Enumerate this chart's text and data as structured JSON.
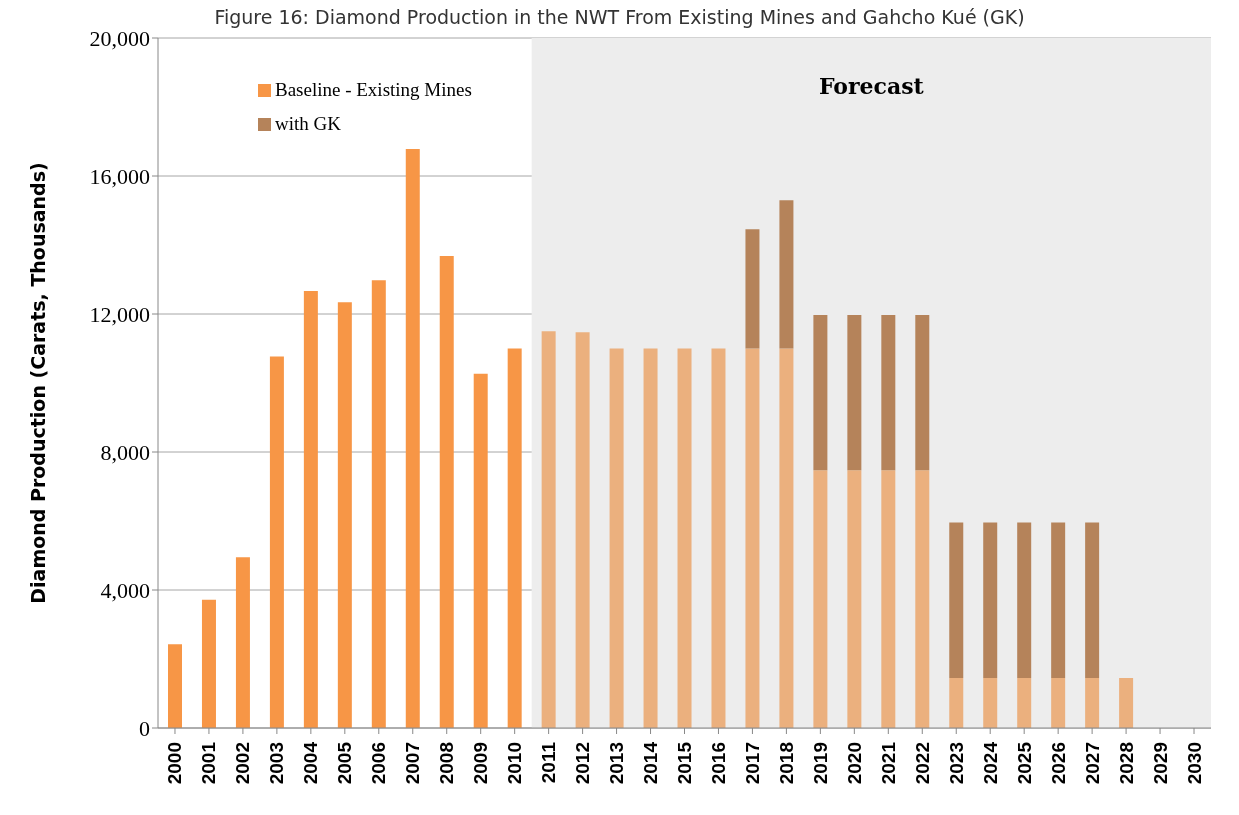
{
  "chart_data": {
    "type": "bar",
    "title": "Figure 16: Diamond Production in the NWT From Existing Mines and Gahcho Kué (GK)",
    "ylabel": "Diamond Production (Carats, Thousands)",
    "stacked": true,
    "categories": [
      "2000",
      "2001",
      "2002",
      "2003",
      "2004",
      "2005",
      "2006",
      "2007",
      "2008",
      "2009",
      "2010",
      "2011",
      "2012",
      "2013",
      "2014",
      "2015",
      "2016",
      "2017",
      "2018",
      "2019",
      "2020",
      "2021",
      "2022",
      "2023",
      "2024",
      "2025",
      "2026",
      "2027",
      "2028",
      "2029",
      "2030"
    ],
    "series": [
      {
        "name": "Baseline - Existing Mines",
        "color": "#f79646",
        "colors": [
          "#f79646",
          "#f79646",
          "#f79646",
          "#f79646",
          "#f79646",
          "#f79646",
          "#f79646",
          "#f79646",
          "#f79646",
          "#f79646",
          "#f79646",
          "#ebb07e",
          "#ebb07e",
          "#ebb07e",
          "#ebb07e",
          "#ebb07e",
          "#ebb07e",
          "#ebb07e",
          "#ebb07e",
          "#ebb07e",
          "#ebb07e",
          "#ebb07e",
          "#ebb07e",
          "#ebb07e",
          "#ebb07e",
          "#ebb07e",
          "#ebb07e",
          "#ebb07e",
          "#ebb07e",
          "#ebb07e",
          "#ebb07e"
        ],
        "values": [
          2430,
          3720,
          4950,
          10770,
          12670,
          12340,
          12980,
          16780,
          13680,
          10270,
          11000,
          11500,
          11470,
          11000,
          11000,
          11000,
          11000,
          11000,
          11000,
          7470,
          7470,
          7470,
          7470,
          1450,
          1450,
          1450,
          1450,
          1450,
          1450,
          null,
          null
        ]
      },
      {
        "name": "with GK",
        "color": "#b5835a",
        "values": [
          null,
          null,
          null,
          null,
          null,
          null,
          null,
          null,
          null,
          null,
          null,
          null,
          null,
          null,
          null,
          null,
          null,
          3460,
          4300,
          4500,
          4500,
          4500,
          4500,
          4510,
          4510,
          4510,
          4510,
          4510,
          null,
          null,
          null
        ]
      }
    ],
    "ylim": [
      0,
      20000
    ],
    "yticks": [
      0,
      {
        "value": 4000,
        "label": "4,000"
      },
      {
        "value": 8000,
        "label": "8,000"
      },
      {
        "value": 12000,
        "label": "12,000"
      },
      {
        "value": 16000,
        "label": "16,000"
      },
      {
        "value": 20000,
        "label": "20,000"
      }
    ],
    "grid": "y",
    "legend": "top left",
    "bands": [
      {
        "axis": "x",
        "from": "2011",
        "to": "2030",
        "label": "Forecast",
        "color": "#ededed"
      }
    ]
  }
}
